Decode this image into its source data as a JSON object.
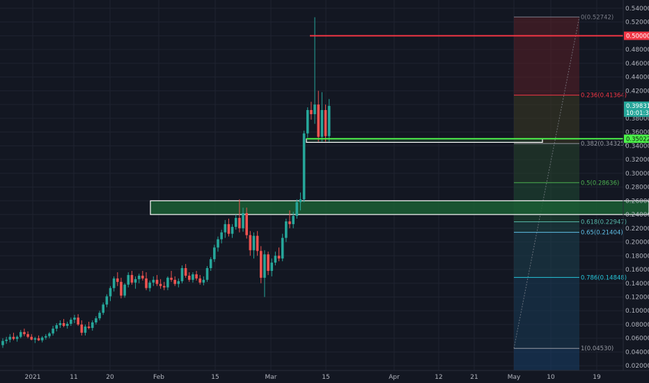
{
  "chart_data": {
    "type": "candlestick",
    "x_tick_labels": [
      "2021",
      "11",
      "20",
      "Feb",
      "15",
      "Mar",
      "15",
      "Apr",
      "12",
      "21",
      "May",
      "10",
      "19"
    ],
    "y_tick_labels": [
      "0.54000",
      "0.52000",
      "0.50000",
      "0.48000",
      "0.46000",
      "0.44000",
      "0.42000",
      "0.40000",
      "0.38000",
      "0.36000",
      "0.34000",
      "0.32000",
      "0.30000",
      "0.28000",
      "0.26000",
      "0.24000",
      "0.22000",
      "0.20000",
      "0.18000",
      "0.16000",
      "0.14000",
      "0.12000",
      "0.10000",
      "0.08000",
      "0.06000",
      "0.04000",
      "0.02000"
    ],
    "ylim": [
      0.005,
      0.545
    ],
    "grid": true,
    "colors": {
      "up": "#26a69a",
      "down": "#ef5350",
      "background": "#131722",
      "grid": "#1f2330"
    },
    "candles": [
      [
        0.05,
        0.06,
        0.046,
        0.056
      ],
      [
        0.056,
        0.062,
        0.052,
        0.058
      ],
      [
        0.058,
        0.066,
        0.054,
        0.062
      ],
      [
        0.062,
        0.068,
        0.057,
        0.059
      ],
      [
        0.059,
        0.064,
        0.055,
        0.062
      ],
      [
        0.062,
        0.072,
        0.06,
        0.069
      ],
      [
        0.069,
        0.074,
        0.063,
        0.066
      ],
      [
        0.066,
        0.07,
        0.06,
        0.062
      ],
      [
        0.062,
        0.066,
        0.057,
        0.058
      ],
      [
        0.058,
        0.062,
        0.053,
        0.06
      ],
      [
        0.06,
        0.064,
        0.056,
        0.057
      ],
      [
        0.057,
        0.063,
        0.054,
        0.061
      ],
      [
        0.061,
        0.066,
        0.058,
        0.063
      ],
      [
        0.063,
        0.069,
        0.06,
        0.067
      ],
      [
        0.067,
        0.078,
        0.064,
        0.074
      ],
      [
        0.074,
        0.082,
        0.07,
        0.079
      ],
      [
        0.079,
        0.086,
        0.075,
        0.082
      ],
      [
        0.082,
        0.088,
        0.076,
        0.078
      ],
      [
        0.078,
        0.084,
        0.074,
        0.081
      ],
      [
        0.081,
        0.09,
        0.078,
        0.087
      ],
      [
        0.087,
        0.094,
        0.082,
        0.09
      ],
      [
        0.09,
        0.095,
        0.078,
        0.08
      ],
      [
        0.08,
        0.086,
        0.064,
        0.068
      ],
      [
        0.068,
        0.08,
        0.064,
        0.077
      ],
      [
        0.077,
        0.084,
        0.073,
        0.075
      ],
      [
        0.075,
        0.086,
        0.071,
        0.083
      ],
      [
        0.083,
        0.092,
        0.08,
        0.089
      ],
      [
        0.089,
        0.1,
        0.086,
        0.097
      ],
      [
        0.097,
        0.112,
        0.094,
        0.109
      ],
      [
        0.109,
        0.124,
        0.105,
        0.121
      ],
      [
        0.121,
        0.136,
        0.114,
        0.133
      ],
      [
        0.133,
        0.15,
        0.128,
        0.147
      ],
      [
        0.147,
        0.156,
        0.136,
        0.142
      ],
      [
        0.142,
        0.148,
        0.118,
        0.122
      ],
      [
        0.122,
        0.14,
        0.119,
        0.138
      ],
      [
        0.138,
        0.156,
        0.134,
        0.152
      ],
      [
        0.152,
        0.158,
        0.138,
        0.141
      ],
      [
        0.141,
        0.15,
        0.132,
        0.146
      ],
      [
        0.146,
        0.154,
        0.14,
        0.151
      ],
      [
        0.151,
        0.158,
        0.144,
        0.147
      ],
      [
        0.147,
        0.156,
        0.13,
        0.133
      ],
      [
        0.133,
        0.144,
        0.128,
        0.141
      ],
      [
        0.141,
        0.15,
        0.136,
        0.145
      ],
      [
        0.145,
        0.152,
        0.136,
        0.139
      ],
      [
        0.139,
        0.146,
        0.132,
        0.136
      ],
      [
        0.136,
        0.142,
        0.13,
        0.134
      ],
      [
        0.134,
        0.15,
        0.13,
        0.148
      ],
      [
        0.148,
        0.158,
        0.142,
        0.145
      ],
      [
        0.145,
        0.15,
        0.136,
        0.139
      ],
      [
        0.139,
        0.147,
        0.134,
        0.143
      ],
      [
        0.143,
        0.166,
        0.14,
        0.162
      ],
      [
        0.162,
        0.168,
        0.148,
        0.151
      ],
      [
        0.151,
        0.156,
        0.142,
        0.145
      ],
      [
        0.145,
        0.156,
        0.141,
        0.153
      ],
      [
        0.153,
        0.158,
        0.144,
        0.147
      ],
      [
        0.147,
        0.152,
        0.138,
        0.141
      ],
      [
        0.141,
        0.15,
        0.137,
        0.145
      ],
      [
        0.145,
        0.165,
        0.142,
        0.162
      ],
      [
        0.162,
        0.178,
        0.158,
        0.175
      ],
      [
        0.175,
        0.196,
        0.171,
        0.192
      ],
      [
        0.192,
        0.208,
        0.186,
        0.204
      ],
      [
        0.204,
        0.218,
        0.198,
        0.214
      ],
      [
        0.214,
        0.232,
        0.206,
        0.226
      ],
      [
        0.226,
        0.234,
        0.208,
        0.212
      ],
      [
        0.212,
        0.226,
        0.206,
        0.222
      ],
      [
        0.222,
        0.24,
        0.218,
        0.235
      ],
      [
        0.235,
        0.262,
        0.214,
        0.22
      ],
      [
        0.22,
        0.25,
        0.215,
        0.242
      ],
      [
        0.242,
        0.25,
        0.205,
        0.21
      ],
      [
        0.21,
        0.216,
        0.18,
        0.188
      ],
      [
        0.188,
        0.214,
        0.176,
        0.209
      ],
      [
        0.209,
        0.216,
        0.18,
        0.187
      ],
      [
        0.187,
        0.194,
        0.14,
        0.148
      ],
      [
        0.148,
        0.188,
        0.12,
        0.182
      ],
      [
        0.182,
        0.186,
        0.152,
        0.158
      ],
      [
        0.158,
        0.176,
        0.15,
        0.17
      ],
      [
        0.17,
        0.186,
        0.166,
        0.18
      ],
      [
        0.18,
        0.192,
        0.172,
        0.176
      ],
      [
        0.176,
        0.212,
        0.172,
        0.206
      ],
      [
        0.206,
        0.234,
        0.2,
        0.23
      ],
      [
        0.23,
        0.246,
        0.22,
        0.226
      ],
      [
        0.226,
        0.244,
        0.22,
        0.238
      ],
      [
        0.238,
        0.262,
        0.234,
        0.258
      ],
      [
        0.258,
        0.272,
        0.246,
        0.262
      ],
      [
        0.262,
        0.362,
        0.258,
        0.358
      ],
      [
        0.358,
        0.396,
        0.352,
        0.392
      ],
      [
        0.392,
        0.404,
        0.378,
        0.386
      ],
      [
        0.386,
        0.527,
        0.372,
        0.4
      ],
      [
        0.4,
        0.42,
        0.346,
        0.353
      ],
      [
        0.353,
        0.418,
        0.346,
        0.392
      ],
      [
        0.392,
        0.4,
        0.346,
        0.354
      ],
      [
        0.354,
        0.408,
        0.346,
        0.398
      ]
    ],
    "horizontal_lines": [
      {
        "price": 0.5,
        "label": "0.50000",
        "color": "#f23645"
      },
      {
        "price": 0.35022,
        "label": "0.35022",
        "color": "#4cf04a"
      }
    ],
    "zones": [
      {
        "top": 0.26,
        "bottom": 0.24,
        "color": "#1b5e34"
      },
      {
        "top": 0.35,
        "bottom": 0.345,
        "color": "#1b3a2a"
      }
    ],
    "last_price": {
      "price": 0.39831,
      "label": "0.39831",
      "countdown": "10:01:33"
    },
    "fib_levels": [
      {
        "price": 0.52742,
        "label": "0(0.52742)",
        "color": "#787b86"
      },
      {
        "price": 0.41364,
        "label": "0.236(0.41364)",
        "color": "#f23645"
      },
      {
        "price": 0.34325,
        "label": "0.382(0.34325)",
        "color": "#9598a1"
      },
      {
        "price": 0.28636,
        "label": "0.5(0.28636)",
        "color": "#4caf50"
      },
      {
        "price": 0.22947,
        "label": "0.618(0.22947)",
        "color": "#56b6a8"
      },
      {
        "price": 0.21404,
        "label": "0.65(0.21404)",
        "color": "#5fc0e8"
      },
      {
        "price": 0.14848,
        "label": "0.786(0.14848)",
        "color": "#26c6da"
      },
      {
        "price": 0.0453,
        "label": "1(0.04530)",
        "color": "#9598a1"
      }
    ]
  }
}
